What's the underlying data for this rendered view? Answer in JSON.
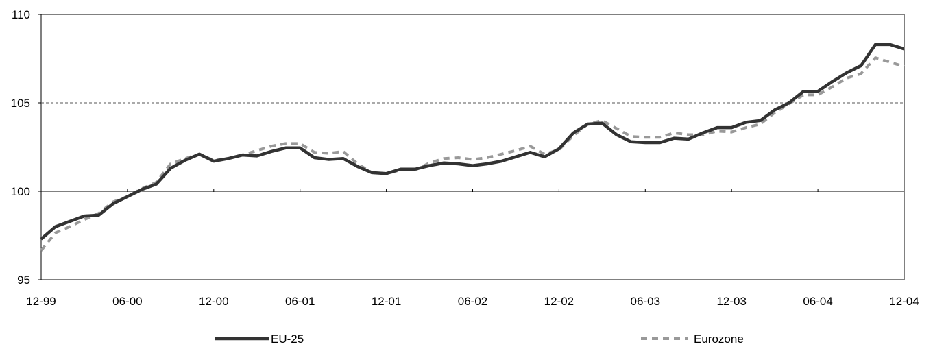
{
  "chart_data": {
    "type": "line",
    "title": "",
    "xlabel": "",
    "ylabel": "",
    "ylim": [
      95,
      110
    ],
    "y_ticks": [
      95,
      100,
      105,
      110
    ],
    "y_tick_labels": [
      "95",
      "100",
      "105",
      "110"
    ],
    "x_ticks": [
      "12-99",
      "06-00",
      "12-00",
      "06-01",
      "12-01",
      "06-02",
      "12-02",
      "06-03",
      "12-03",
      "06-04",
      "12-04"
    ],
    "reference_lines": [
      {
        "value": 100,
        "style": "solid"
      },
      {
        "value": 105,
        "style": "dashed"
      }
    ],
    "grid": false,
    "legend_position": "bottom",
    "x": [
      "12-99",
      "01-00",
      "02-00",
      "03-00",
      "04-00",
      "05-00",
      "06-00",
      "07-00",
      "08-00",
      "09-00",
      "10-00",
      "11-00",
      "12-00",
      "01-01",
      "02-01",
      "03-01",
      "04-01",
      "05-01",
      "06-01",
      "07-01",
      "08-01",
      "09-01",
      "10-01",
      "11-01",
      "12-01",
      "01-02",
      "02-02",
      "03-02",
      "04-02",
      "05-02",
      "06-02",
      "07-02",
      "08-02",
      "09-02",
      "10-02",
      "11-02",
      "12-02",
      "01-03",
      "02-03",
      "03-03",
      "04-03",
      "05-03",
      "06-03",
      "07-03",
      "08-03",
      "09-03",
      "10-03",
      "11-03",
      "12-03",
      "01-04",
      "02-04",
      "03-04",
      "04-04",
      "05-04",
      "06-04",
      "07-04",
      "08-04",
      "09-04",
      "10-04",
      "11-04",
      "12-04"
    ],
    "series": [
      {
        "name": "EU-25",
        "color": "#333333",
        "dash": "solid",
        "values": [
          97.3,
          98.0,
          98.3,
          98.6,
          98.65,
          99.3,
          99.7,
          100.1,
          100.4,
          101.3,
          101.75,
          102.1,
          101.7,
          101.85,
          102.05,
          102.0,
          102.25,
          102.45,
          102.45,
          101.9,
          101.8,
          101.85,
          101.4,
          101.05,
          101.0,
          101.25,
          101.25,
          101.45,
          101.6,
          101.55,
          101.45,
          101.55,
          101.7,
          101.95,
          102.2,
          101.95,
          102.4,
          103.3,
          103.8,
          103.85,
          103.2,
          102.8,
          102.75,
          102.75,
          103.0,
          102.95,
          103.3,
          103.6,
          103.6,
          103.9,
          104.0,
          104.6,
          105.0,
          105.65,
          105.65,
          106.2,
          106.7,
          107.1,
          108.3,
          108.3,
          108.05
        ]
      },
      {
        "name": "Eurozone",
        "color": "#999999",
        "dash": "dashed",
        "values": [
          96.65,
          97.65,
          98.0,
          98.4,
          98.75,
          99.4,
          99.7,
          100.15,
          100.5,
          101.55,
          101.85,
          102.1,
          101.75,
          101.85,
          102.05,
          102.3,
          102.55,
          102.7,
          102.7,
          102.2,
          102.15,
          102.25,
          101.55,
          101.05,
          101.0,
          101.2,
          101.2,
          101.6,
          101.85,
          101.9,
          101.8,
          101.9,
          102.1,
          102.3,
          102.55,
          102.1,
          102.35,
          103.15,
          103.8,
          104.0,
          103.55,
          103.1,
          103.05,
          103.05,
          103.3,
          103.2,
          103.2,
          103.4,
          103.35,
          103.6,
          103.8,
          104.45,
          104.95,
          105.45,
          105.45,
          105.9,
          106.4,
          106.65,
          107.55,
          107.3,
          107.05
        ]
      }
    ]
  }
}
